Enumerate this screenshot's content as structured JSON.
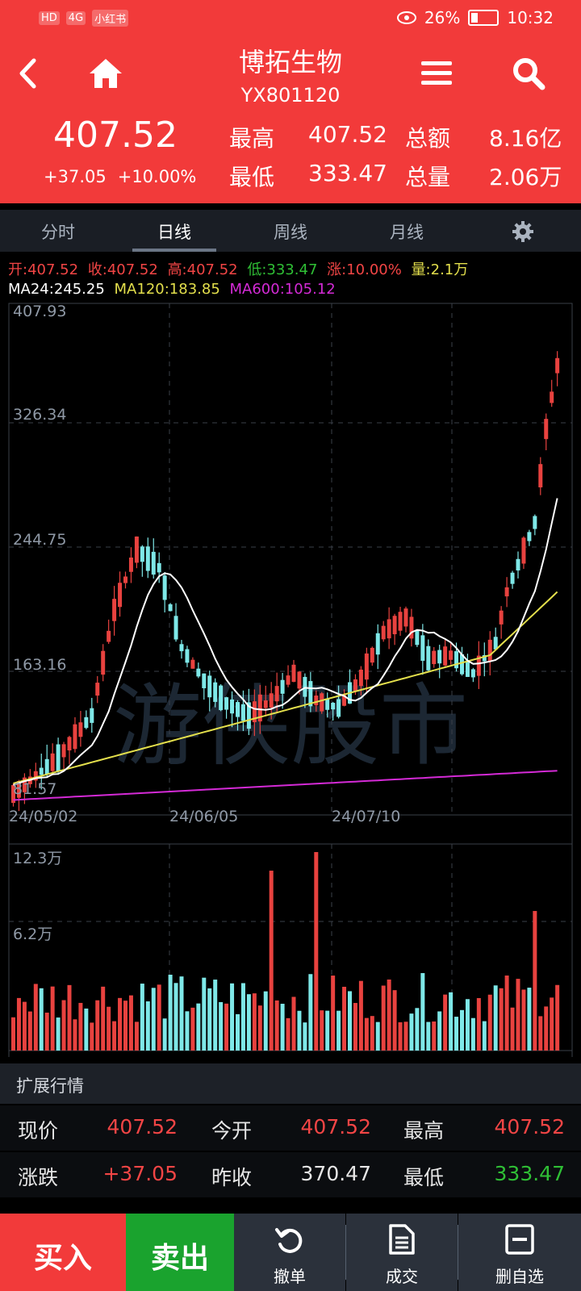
{
  "status_bar": {
    "left_badges": [
      "HD",
      "4G",
      "小红书"
    ],
    "battery": "26%",
    "time": "10:32"
  },
  "header": {
    "title": "博拓生物",
    "code": "YX801120",
    "price": "407.52",
    "change": "+37.05",
    "change_pct": "+10.00%",
    "high_label": "最高",
    "high_value": "407.52",
    "low_label": "最低",
    "low_value": "333.47",
    "amount_label": "总额",
    "amount_value": "8.16亿",
    "volume_label": "总量",
    "volume_value": "2.06万"
  },
  "tabs": [
    "分时",
    "日线",
    "周线",
    "月线"
  ],
  "active_tab": "日线",
  "ohlc_line": {
    "open": "开:407.52",
    "close": "收:407.52",
    "high": "高:407.52",
    "low": "低:333.47",
    "change": "涨:10.00%",
    "volume": "量:2.1万"
  },
  "ma_line": {
    "ma24": "MA24:245.25",
    "ma120": "MA120:183.85",
    "ma600": "MA600:105.12"
  },
  "price_axis": [
    "407.93",
    "326.34",
    "244.75",
    "163.16",
    "81.57"
  ],
  "date_axis": [
    "24/05/02",
    "24/06/05",
    "24/07/10"
  ],
  "volume_axis": [
    "12.3万",
    "6.2万"
  ],
  "watermark": "游侠股市",
  "colors": {
    "up": "#e8423f",
    "down": "#7ee8e8",
    "ma24": "#ffffff",
    "ma120": "#e3df4c",
    "ma600": "#d42ad6",
    "header_red": "#f23a3a"
  },
  "extended": {
    "title": "扩展行情",
    "rows": [
      [
        {
          "label": "现价",
          "value": "407.52",
          "color": "red"
        },
        {
          "label": "今开",
          "value": "407.52",
          "color": "red"
        },
        {
          "label": "最高",
          "value": "407.52",
          "color": "red"
        }
      ],
      [
        {
          "label": "涨跌",
          "value": "+37.05",
          "color": "red"
        },
        {
          "label": "昨收",
          "value": "370.47",
          "color": "white"
        },
        {
          "label": "最低",
          "value": "333.47",
          "color": "green"
        }
      ]
    ]
  },
  "bottom_bar": {
    "buy": "买入",
    "sell": "卖出",
    "tools": [
      {
        "label": "撤单",
        "icon": "undo-icon"
      },
      {
        "label": "成交",
        "icon": "document-icon"
      },
      {
        "label": "删自选",
        "icon": "minus-box-icon"
      }
    ]
  }
}
